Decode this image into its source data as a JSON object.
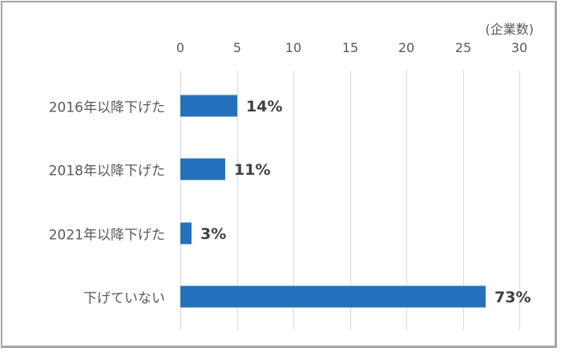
{
  "chart_data": {
    "type": "bar",
    "orientation": "horizontal",
    "title": "",
    "xlabel": "",
    "ylabel": "",
    "unit_label": "(企業数)",
    "categories": [
      "2016年以降下げた",
      "2018年以降下げた",
      "2021年以降下げた",
      "下げていない"
    ],
    "values": [
      5,
      4,
      1,
      27
    ],
    "data_labels": [
      "14%",
      "11%",
      "3%",
      "73%"
    ],
    "xlim": [
      0,
      30
    ],
    "x_ticks": [
      "0",
      "5",
      "10",
      "15",
      "20",
      "25",
      "30"
    ],
    "x_axis_position": "top",
    "grid": true,
    "legend": "none",
    "bar_color": "#2470bd"
  }
}
